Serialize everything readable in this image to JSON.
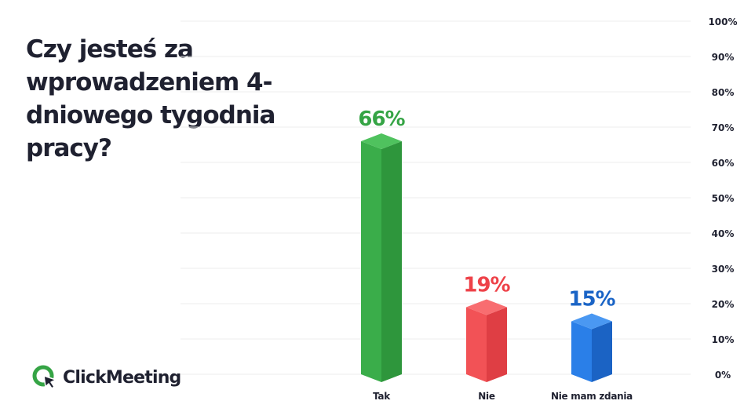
{
  "chart_data": {
    "type": "bar",
    "title": "Czy jesteś za wprowadzeniem 4-dniowego tygodnia pracy?",
    "categories": [
      "Tak",
      "Nie",
      "Nie mam zdania"
    ],
    "values": [
      66,
      19,
      15
    ],
    "data_labels": [
      "66%",
      "19%",
      "15%"
    ],
    "ylim": [
      0,
      100
    ],
    "yticks": [
      0,
      10,
      20,
      30,
      40,
      50,
      60,
      70,
      80,
      90,
      100
    ],
    "ytick_labels": [
      "0%",
      "10%",
      "20%",
      "30%",
      "40%",
      "50%",
      "60%",
      "70%",
      "80%",
      "90%",
      "100%"
    ],
    "y_axis_position": "right",
    "grid": true,
    "legend": "none",
    "colors": {
      "Tak": {
        "front": "#3aad4a",
        "side": "#2e963c",
        "top": "#4fc25e",
        "label": "#35a445"
      },
      "Nie": {
        "front": "#f25256",
        "side": "#df3e44",
        "top": "#f86d70",
        "label": "#ee4148"
      },
      "Nie mam zdania": {
        "front": "#2a7fe8",
        "side": "#1b63c4",
        "top": "#4a98f2",
        "label": "#1a64c6"
      }
    }
  },
  "branding": {
    "logo_text": "ClickMeeting",
    "logo_icon": "clickmeeting-logo-icon",
    "logo_colors": {
      "ring": "#35a445",
      "cursor": "#1f2130"
    }
  },
  "theme": {
    "text": "#1f2130",
    "grid": "#eeeeee",
    "background": "#ffffff"
  }
}
